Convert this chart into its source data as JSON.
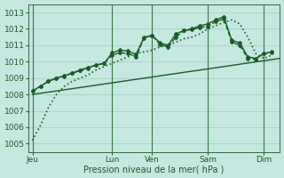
{
  "bg_color": "#c5e8e0",
  "grid_color": "#9ecfbf",
  "line_color": "#1a5c28",
  "xlabel_text": "Pression niveau de la mer( hPa )",
  "xtick_labels": [
    "Jeu",
    "Lun",
    "Ven",
    "Sam",
    "Dim"
  ],
  "xtick_positions": [
    0,
    10,
    15,
    22,
    29
  ],
  "ylim": [
    1004.5,
    1013.5
  ],
  "yticks": [
    1005,
    1006,
    1007,
    1008,
    1009,
    1010,
    1011,
    1012,
    1013
  ],
  "xlim": [
    -0.5,
    31
  ],
  "trend_line": {
    "x": [
      0,
      31
    ],
    "y": [
      1008.0,
      1010.2
    ],
    "style": "-",
    "lw": 1.0
  },
  "line_dotted": {
    "x": [
      0,
      1,
      2,
      3,
      4,
      5,
      6,
      7,
      8,
      9,
      10,
      11,
      12,
      13,
      14,
      15,
      16,
      17,
      18,
      19,
      20,
      21,
      22,
      23,
      24,
      25,
      26,
      27,
      28,
      29,
      30
    ],
    "y": [
      1005.2,
      1006.1,
      1007.2,
      1008.0,
      1008.5,
      1008.8,
      1009.0,
      1009.2,
      1009.5,
      1009.7,
      1009.9,
      1010.1,
      1010.3,
      1010.5,
      1010.6,
      1010.7,
      1010.9,
      1011.0,
      1011.2,
      1011.4,
      1011.5,
      1011.7,
      1012.0,
      1012.2,
      1012.4,
      1012.55,
      1012.3,
      1011.5,
      1010.5,
      1010.2,
      1010.4
    ],
    "style": ":",
    "lw": 1.2
  },
  "line_solid_markers": {
    "x": [
      0,
      1,
      2,
      3,
      4,
      5,
      6,
      7,
      8,
      9,
      10,
      11,
      12,
      13,
      14,
      15,
      16,
      17,
      18,
      19,
      20,
      21,
      22,
      23,
      24,
      25,
      26,
      27,
      28,
      29,
      30
    ],
    "y": [
      1008.2,
      1008.5,
      1008.8,
      1009.0,
      1009.15,
      1009.3,
      1009.5,
      1009.65,
      1009.8,
      1009.9,
      1010.55,
      1010.7,
      1010.65,
      1010.45,
      1011.5,
      1011.6,
      1011.15,
      1011.0,
      1011.7,
      1011.9,
      1012.0,
      1012.2,
      1012.3,
      1012.55,
      1012.75,
      1011.3,
      1011.15,
      1010.3,
      1010.2,
      1010.5,
      1010.6
    ],
    "style": "-",
    "lw": 1.0,
    "marker": "D",
    "ms": 2.0
  },
  "line_dashed_markers": {
    "x": [
      0,
      1,
      2,
      3,
      4,
      5,
      6,
      7,
      8,
      9,
      10,
      11,
      12,
      13,
      14,
      15,
      16,
      17,
      18,
      19,
      20,
      21,
      22,
      23,
      24,
      25,
      26,
      27,
      28,
      29,
      30
    ],
    "y": [
      1008.2,
      1008.5,
      1008.8,
      1009.0,
      1009.1,
      1009.3,
      1009.45,
      1009.6,
      1009.8,
      1009.9,
      1010.4,
      1010.55,
      1010.5,
      1010.3,
      1011.45,
      1011.6,
      1011.05,
      1010.9,
      1011.5,
      1011.9,
      1011.95,
      1012.1,
      1012.15,
      1012.45,
      1012.6,
      1011.2,
      1011.0,
      1010.2,
      1010.15,
      1010.5,
      1010.55
    ],
    "style": "--",
    "lw": 1.0,
    "marker": "D",
    "ms": 2.0
  },
  "vline_positions": [
    0,
    10,
    15,
    22,
    29
  ],
  "vline_color": "#2d6e40",
  "vline_lw": 0.8
}
